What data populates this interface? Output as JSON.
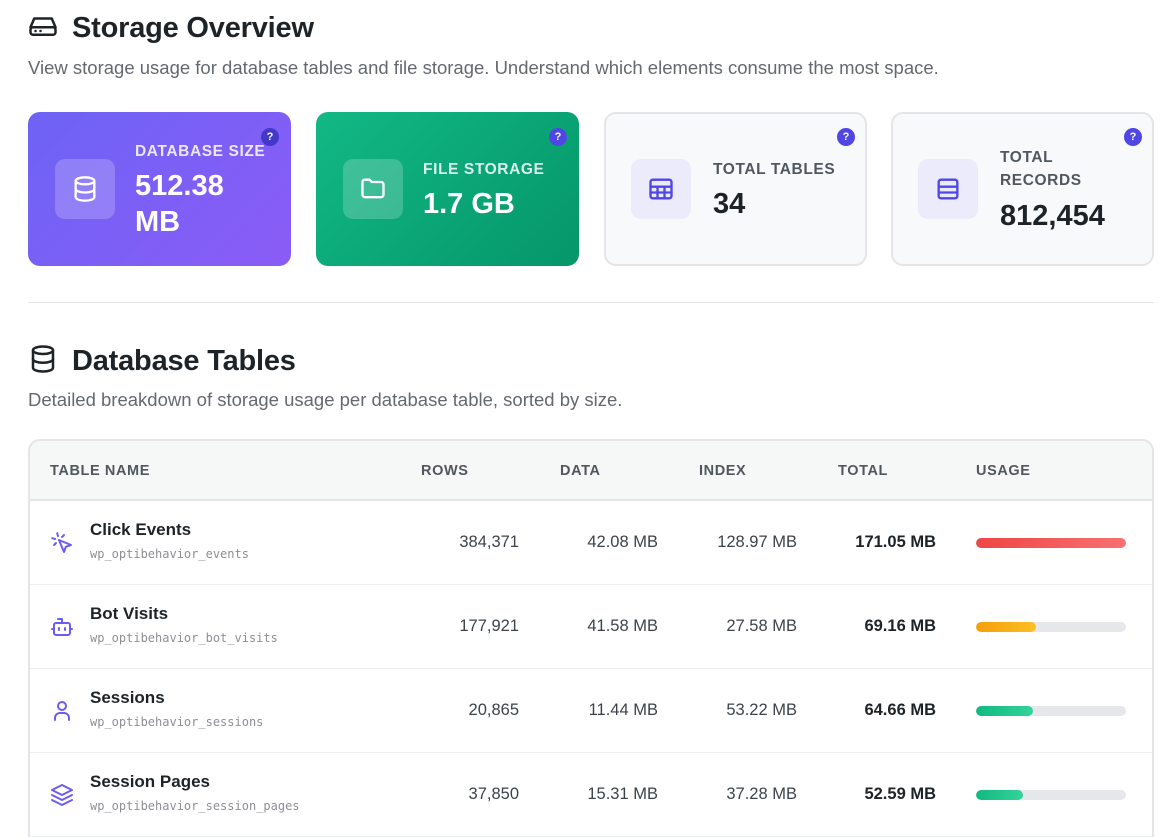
{
  "overview": {
    "title": "Storage Overview",
    "subtitle": "View storage usage for database tables and file storage. Understand which elements consume the most space.",
    "help_glyph": "?",
    "cards": [
      {
        "label": "DATABASE SIZE",
        "value_line1": "512.38",
        "value_line2": "MB",
        "icon": "database-icon"
      },
      {
        "label": "FILE STORAGE",
        "value": "1.7 GB",
        "icon": "folder-icon"
      },
      {
        "label": "TOTAL TABLES",
        "value": "34",
        "icon": "table-grid-icon"
      },
      {
        "label_line1": "TOTAL",
        "label_line2": "RECORDS",
        "value": "812,454",
        "icon": "list-rows-icon"
      }
    ]
  },
  "tables_section": {
    "title": "Database Tables",
    "subtitle": "Detailed breakdown of storage usage per database table, sorted by size.",
    "columns": [
      "TABLE NAME",
      "ROWS",
      "DATA",
      "INDEX",
      "TOTAL",
      "USAGE"
    ],
    "rows": [
      {
        "name": "Click Events",
        "slug": "wp_optibehavior_events",
        "rows": "384,371",
        "data": "42.08 MB",
        "index": "128.97 MB",
        "total": "171.05 MB",
        "usage": 1.0,
        "color": "#ef4444",
        "icon": "cursor-click-icon"
      },
      {
        "name": "Bot Visits",
        "slug": "wp_optibehavior_bot_visits",
        "rows": "177,921",
        "data": "41.58 MB",
        "index": "27.58 MB",
        "total": "69.16 MB",
        "usage": 0.4,
        "color": "#f59e0b",
        "icon": "robot-icon"
      },
      {
        "name": "Sessions",
        "slug": "wp_optibehavior_sessions",
        "rows": "20,865",
        "data": "11.44 MB",
        "index": "53.22 MB",
        "total": "64.66 MB",
        "usage": 0.38,
        "color": "#10b981",
        "icon": "user-icon"
      },
      {
        "name": "Session Pages",
        "slug": "wp_optibehavior_session_pages",
        "rows": "37,850",
        "data": "15.31 MB",
        "index": "37.28 MB",
        "total": "52.59 MB",
        "usage": 0.31,
        "color": "#10b981",
        "icon": "layers-icon"
      }
    ]
  },
  "colors": {
    "accent": "#4f46e5",
    "card1": "#7c5cf5",
    "card2": "#10b37f"
  }
}
